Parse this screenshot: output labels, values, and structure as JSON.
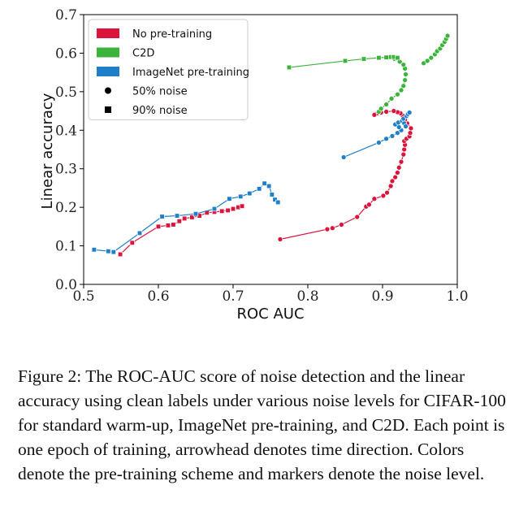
{
  "chart_data": {
    "type": "line",
    "xlabel": "ROC AUC",
    "ylabel": "Linear accuracy",
    "xlim": [
      0.5,
      1.0
    ],
    "ylim": [
      0.0,
      0.7
    ],
    "xticks": [
      "0.5",
      "0.6",
      "0.7",
      "0.8",
      "0.9",
      "1.0"
    ],
    "yticks": [
      "0.0",
      "0.1",
      "0.2",
      "0.3",
      "0.4",
      "0.5",
      "0.6",
      "0.7"
    ],
    "legend_position": "top-left",
    "grid": false,
    "legend": [
      {
        "label": "No pre-training",
        "kind": "patch",
        "color": "#dc143c"
      },
      {
        "label": "C2D",
        "kind": "patch",
        "color": "#3cb43c"
      },
      {
        "label": "ImageNet pre-training",
        "kind": "patch",
        "color": "#1f7fc8"
      },
      {
        "label": "50% noise",
        "kind": "marker",
        "marker": "circle"
      },
      {
        "label": "90% noise",
        "kind": "marker",
        "marker": "square"
      }
    ],
    "series": [
      {
        "scheme": "No pre-training",
        "noise": "50%",
        "color": "#dc143c",
        "marker": "circle",
        "x": [
          0.763,
          0.826,
          0.833,
          0.845,
          0.866,
          0.878,
          0.882,
          0.889,
          0.901,
          0.906,
          0.911,
          0.913,
          0.917,
          0.92,
          0.922,
          0.925,
          0.928,
          0.929,
          0.93,
          0.929,
          0.932,
          0.936,
          0.937,
          0.938,
          0.933,
          0.93,
          0.927,
          0.924,
          0.92,
          0.915,
          0.905,
          0.898,
          0.893,
          0.889
        ],
        "y": [
          0.117,
          0.143,
          0.146,
          0.155,
          0.175,
          0.202,
          0.207,
          0.222,
          0.23,
          0.238,
          0.255,
          0.268,
          0.278,
          0.29,
          0.303,
          0.318,
          0.337,
          0.35,
          0.362,
          0.372,
          0.378,
          0.384,
          0.393,
          0.405,
          0.418,
          0.427,
          0.438,
          0.444,
          0.447,
          0.45,
          0.448,
          0.446,
          0.444,
          0.44
        ]
      },
      {
        "scheme": "No pre-training",
        "noise": "90%",
        "color": "#dc143c",
        "marker": "square",
        "x": [
          0.549,
          0.565,
          0.6,
          0.613,
          0.62,
          0.628,
          0.635,
          0.645,
          0.655,
          0.665,
          0.675,
          0.685,
          0.693,
          0.7,
          0.707,
          0.712
        ],
        "y": [
          0.078,
          0.108,
          0.15,
          0.153,
          0.155,
          0.164,
          0.171,
          0.174,
          0.178,
          0.186,
          0.188,
          0.19,
          0.192,
          0.196,
          0.2,
          0.203
        ]
      },
      {
        "scheme": "C2D",
        "noise": "50%",
        "color": "#3cb43c",
        "marker": "circle",
        "x": [
          0.895,
          0.898,
          0.905,
          0.912,
          0.92,
          0.925,
          0.928,
          0.93,
          0.931,
          0.93,
          0.928,
          0.923,
          0.916,
          0.91
        ],
        "y": [
          0.448,
          0.456,
          0.467,
          0.482,
          0.493,
          0.504,
          0.515,
          0.53,
          0.545,
          0.56,
          0.57,
          0.578,
          0.585,
          0.59
        ]
      },
      {
        "scheme": "C2D",
        "noise": "50%",
        "color": "#3cb43c",
        "marker": "circle",
        "x": [
          0.955,
          0.96,
          0.965,
          0.97,
          0.973,
          0.977,
          0.98,
          0.983,
          0.985,
          0.987
        ],
        "y": [
          0.574,
          0.58,
          0.588,
          0.597,
          0.605,
          0.612,
          0.621,
          0.629,
          0.637,
          0.645
        ]
      },
      {
        "scheme": "C2D",
        "noise": "90%",
        "color": "#3cb43c",
        "marker": "square",
        "x": [
          0.775,
          0.85,
          0.875,
          0.895,
          0.905,
          0.915,
          0.92
        ],
        "y": [
          0.563,
          0.58,
          0.585,
          0.588,
          0.589,
          0.59,
          0.588
        ]
      },
      {
        "scheme": "ImageNet pre-training",
        "noise": "50%",
        "color": "#1f7fc8",
        "marker": "circle",
        "x": [
          0.848,
          0.895,
          0.905,
          0.913,
          0.92,
          0.925,
          0.922,
          0.917,
          0.921,
          0.926,
          0.929,
          0.931,
          0.928,
          0.932,
          0.934,
          0.936
        ],
        "y": [
          0.33,
          0.368,
          0.378,
          0.385,
          0.393,
          0.4,
          0.408,
          0.415,
          0.42,
          0.424,
          0.418,
          0.41,
          0.43,
          0.437,
          0.442,
          0.446
        ]
      },
      {
        "scheme": "ImageNet pre-training",
        "noise": "90%",
        "color": "#1f7fc8",
        "marker": "square",
        "x": [
          0.514,
          0.533,
          0.54,
          0.575,
          0.605,
          0.625,
          0.65,
          0.675,
          0.695,
          0.71,
          0.722,
          0.735,
          0.742,
          0.748,
          0.752,
          0.756,
          0.76
        ],
        "y": [
          0.09,
          0.086,
          0.084,
          0.133,
          0.176,
          0.178,
          0.183,
          0.196,
          0.222,
          0.228,
          0.236,
          0.248,
          0.262,
          0.255,
          0.233,
          0.22,
          0.213
        ]
      }
    ]
  },
  "caption": "Figure 2: The ROC-AUC score of noise detection and the linear accuracy using clean labels under various noise levels for CIFAR-100 for standard warm-up, ImageNet pre-training, and C2D. Each point is one epoch of training, arrowhead denotes time direction. Colors denote the pre-training scheme and markers denote the noise level."
}
